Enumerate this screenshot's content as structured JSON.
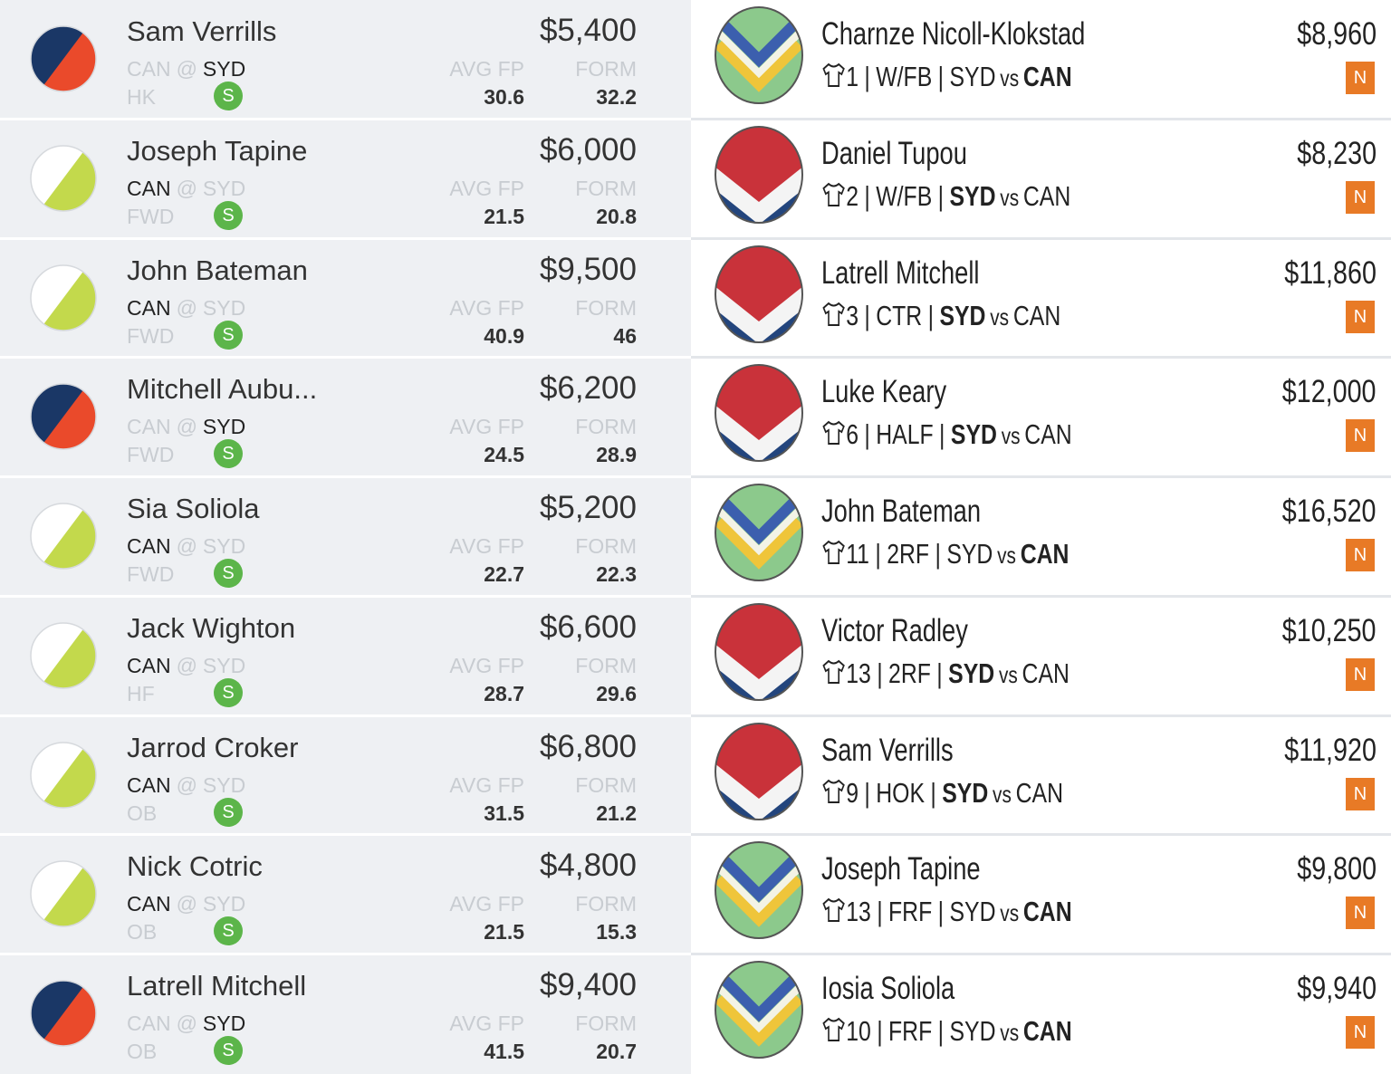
{
  "labels": {
    "avg": "AVG FP",
    "form": "FORM",
    "badge": "S",
    "right_badge": "N",
    "separator": "|"
  },
  "left_matchup": [
    "CAN",
    "@",
    "SYD"
  ],
  "right_matchup": [
    "SYD",
    "vs",
    "CAN"
  ],
  "colors": {
    "SYD": [
      "#1a3766",
      "#ea4a2b"
    ],
    "CAN": [
      "#ffffff",
      "#c3d94c"
    ]
  },
  "left": [
    {
      "name": "Sam Verrills",
      "bold": 2,
      "position": "HK",
      "price": "$5,400",
      "avg": 30.6,
      "form": 32.2
    },
    {
      "name": "Joseph Tapine",
      "bold": 0,
      "position": "FWD",
      "price": "$6,000",
      "avg": 21.5,
      "form": 20.8
    },
    {
      "name": "John Bateman",
      "bold": 0,
      "position": "FWD",
      "price": "$9,500",
      "avg": 40.9,
      "form": 46
    },
    {
      "name": "Mitchell Aubu...",
      "bold": 2,
      "position": "FWD",
      "price": "$6,200",
      "avg": 24.5,
      "form": 28.9
    },
    {
      "name": "Sia Soliola",
      "bold": 0,
      "position": "FWD",
      "price": "$5,200",
      "avg": 22.7,
      "form": 22.3
    },
    {
      "name": "Jack Wighton",
      "bold": 0,
      "position": "HF",
      "price": "$6,600",
      "avg": 28.7,
      "form": 29.6
    },
    {
      "name": "Jarrod Croker",
      "bold": 0,
      "position": "OB",
      "price": "$6,800",
      "avg": 31.5,
      "form": 21.2
    },
    {
      "name": "Nick Cotric",
      "bold": 0,
      "position": "OB",
      "price": "$4,800",
      "avg": 21.5,
      "form": 15.3
    },
    {
      "name": "Latrell Mitchell",
      "bold": 2,
      "position": "OB",
      "price": "$9,400",
      "avg": 41.5,
      "form": 20.7
    }
  ],
  "right": [
    {
      "name": "Charnze Nicoll-Klokstad",
      "number": 1,
      "position": "W/FB",
      "bold": 2,
      "price": "$8,960"
    },
    {
      "name": "Daniel Tupou",
      "number": 2,
      "position": "W/FB",
      "bold": 0,
      "price": "$8,230"
    },
    {
      "name": "Latrell Mitchell",
      "number": 3,
      "position": "CTR",
      "bold": 0,
      "price": "$11,860"
    },
    {
      "name": "Luke Keary",
      "number": 6,
      "position": "HALF",
      "bold": 0,
      "price": "$12,000"
    },
    {
      "name": "John Bateman",
      "number": 11,
      "position": "2RF",
      "bold": 2,
      "price": "$16,520"
    },
    {
      "name": "Victor Radley",
      "number": 13,
      "position": "2RF",
      "bold": 0,
      "price": "$10,250"
    },
    {
      "name": "Sam Verrills",
      "number": 9,
      "position": "HOK",
      "bold": 0,
      "price": "$11,920"
    },
    {
      "name": "Joseph Tapine",
      "number": 13,
      "position": "FRF",
      "bold": 2,
      "price": "$9,800"
    },
    {
      "name": "Iosia Soliola",
      "number": 10,
      "position": "FRF",
      "bold": 2,
      "price": "$9,940"
    }
  ]
}
